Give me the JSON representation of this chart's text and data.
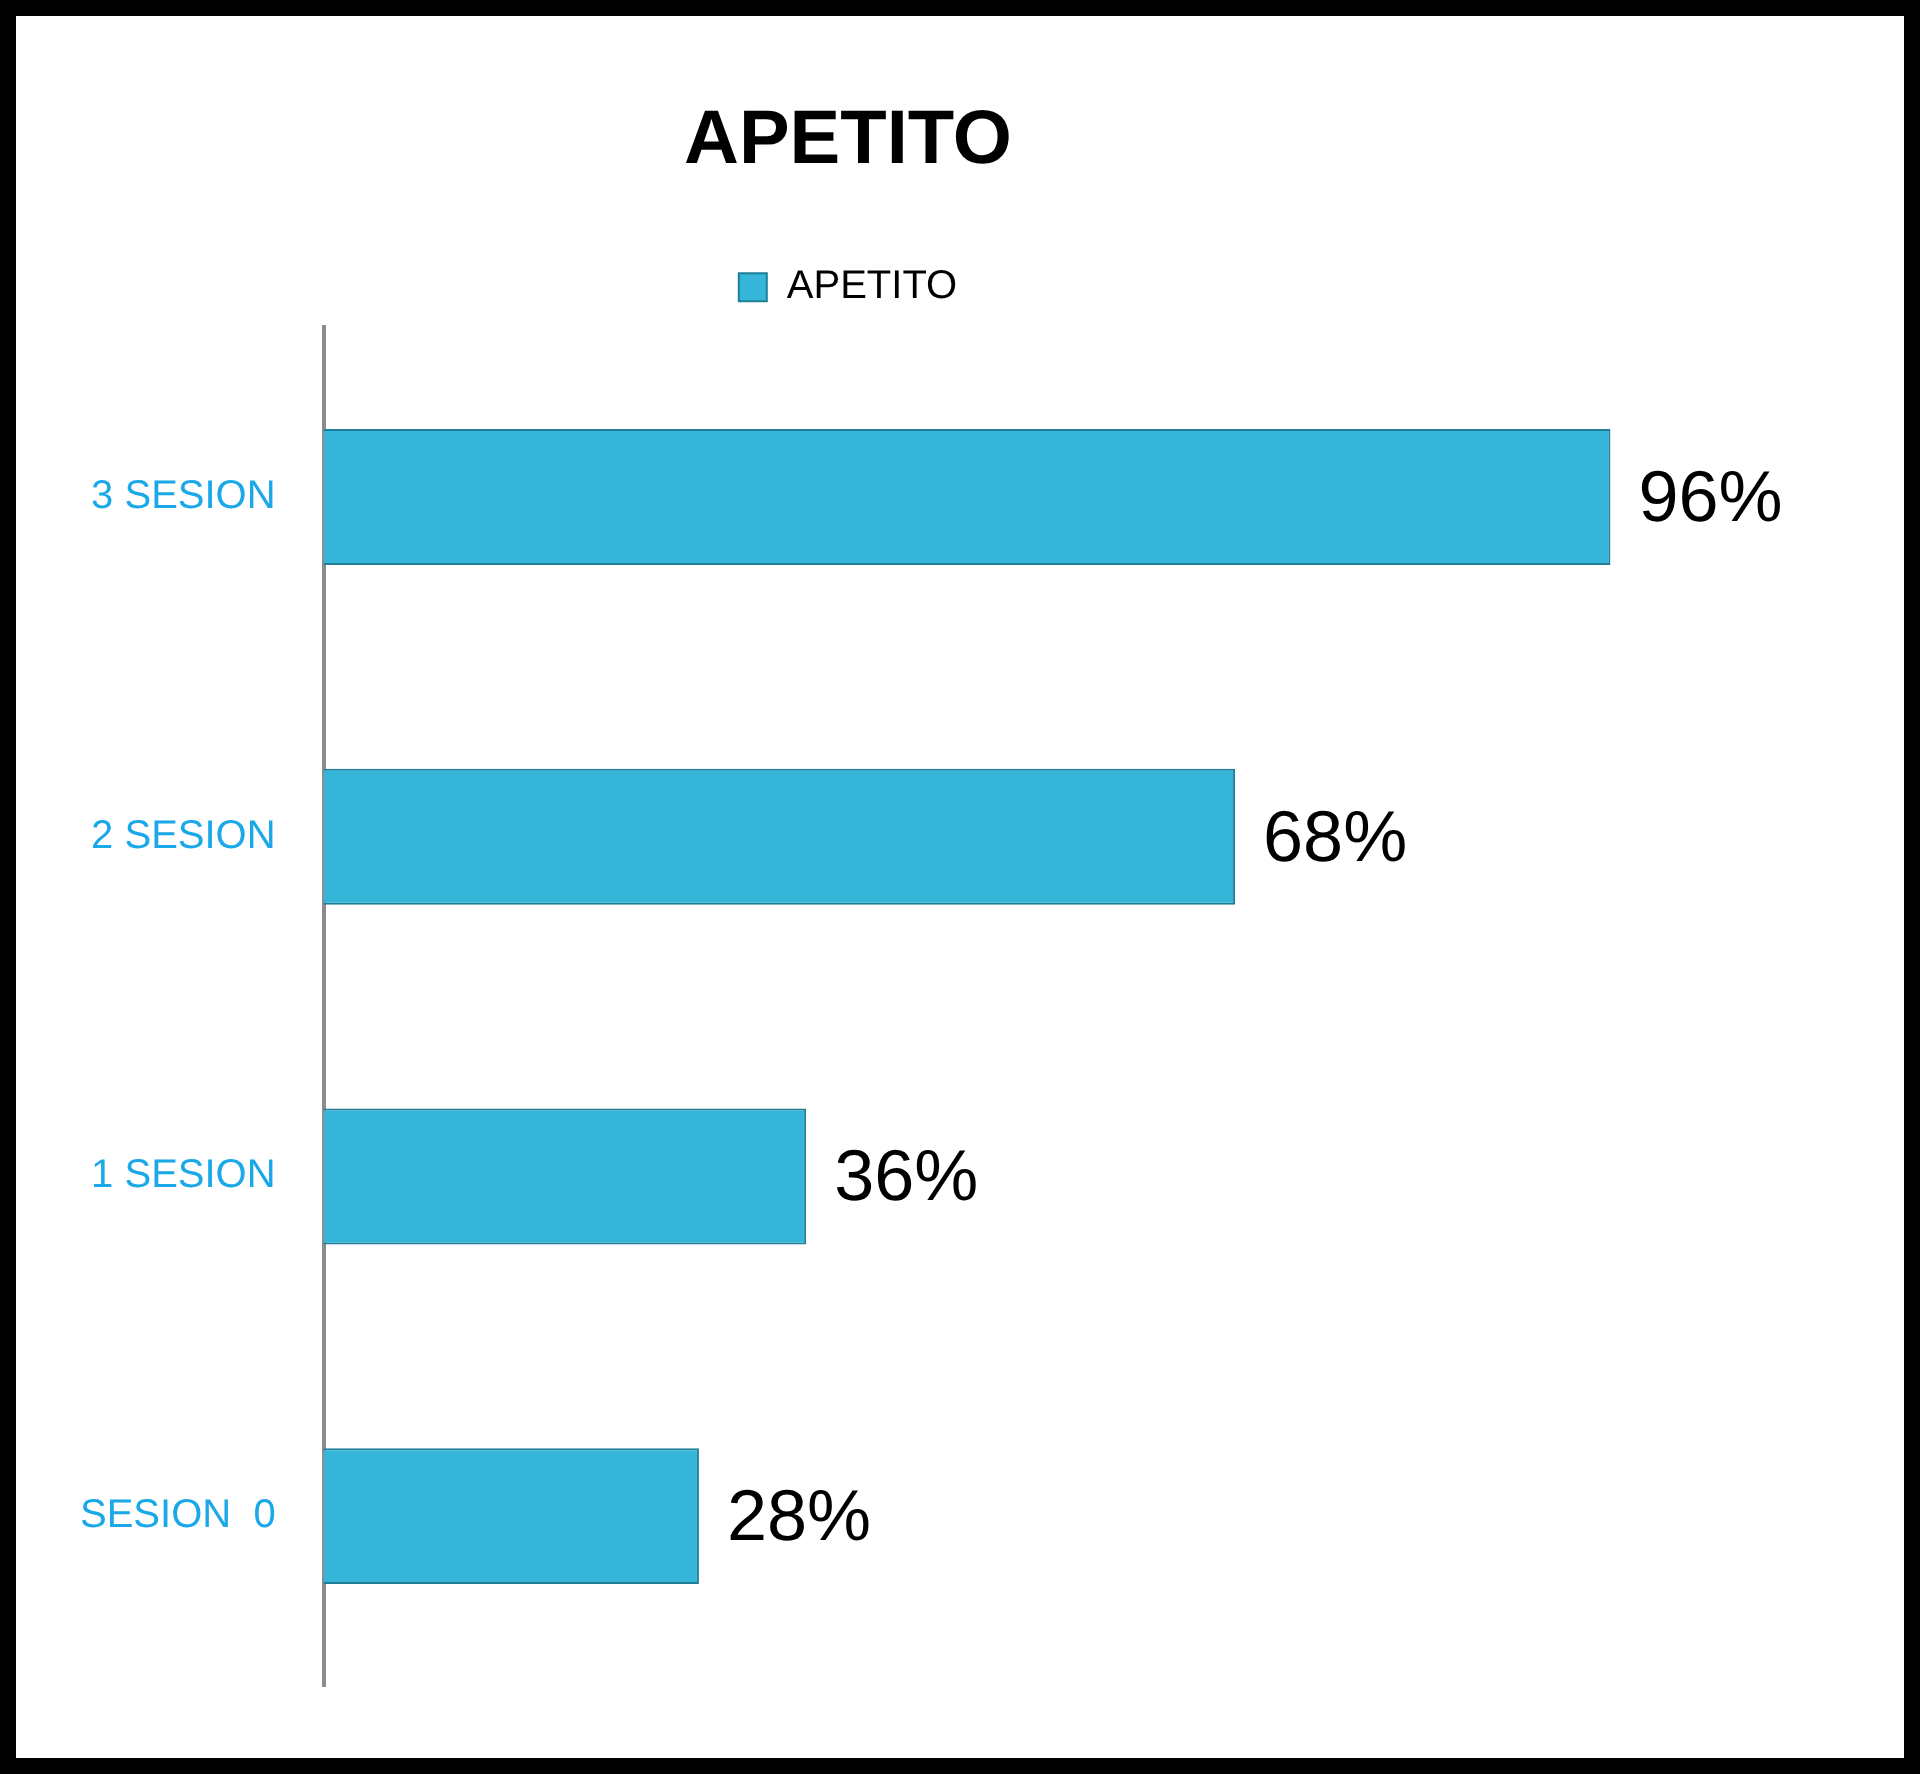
{
  "chart_data": {
    "type": "bar",
    "orientation": "horizontal",
    "title": "APETITO",
    "categories": [
      "3 SESION",
      "2 SESION",
      "1 SESION",
      "SESION  0"
    ],
    "series": [
      {
        "name": "APETITO",
        "color": "#35b6d8",
        "values": [
          96,
          68,
          36,
          28
        ],
        "value_labels": [
          "96%",
          "68%",
          "36%",
          "28%"
        ]
      }
    ],
    "tick_labels": "y",
    "grid": false,
    "legend": "top"
  }
}
